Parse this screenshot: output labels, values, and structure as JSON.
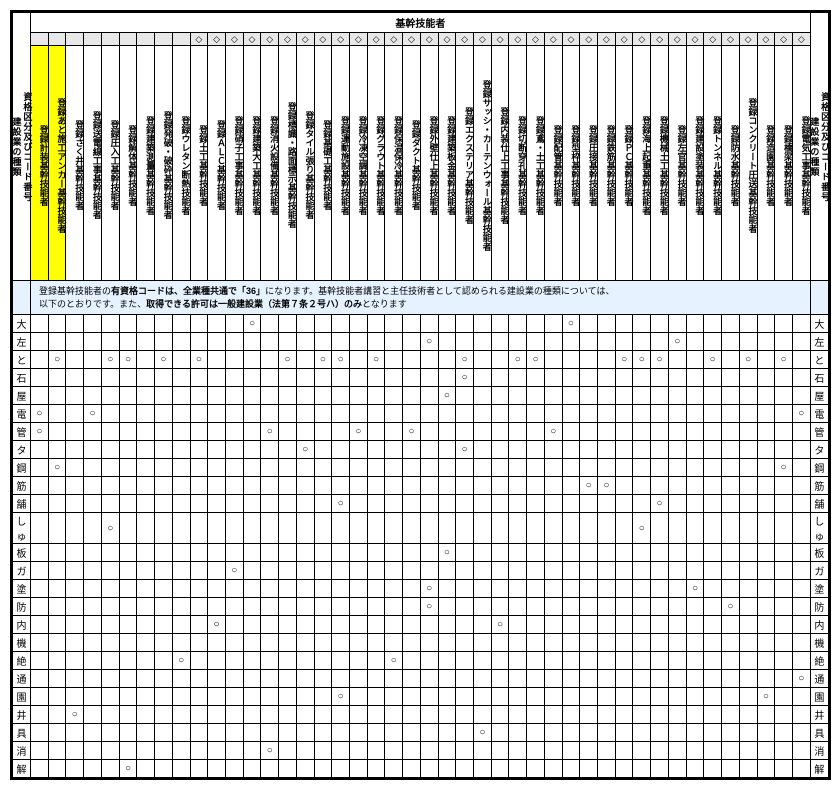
{
  "title": "基幹技能者",
  "side_left_top": "資格区分及びコード番号",
  "side_left_bottom": "建設業の種類",
  "side_right_top": "資格区分及びコード番号",
  "side_right_bottom": "建設業の種類",
  "note_line1": "登録基幹技能者の有資格コードは、全業種共通で「36」になります。基幹技能者講習と主任技術者として認められる建設業の種類については、",
  "note_line2": "以下のとおりです。また、取得できる許可は一般建設業（法第７条２号ハ）のみとなります",
  "bold1": "有資格コードは、全業種共通で「36」",
  "bold2": "取得できる許可は一般建設業（法第７条２号ハ）のみ",
  "columns": [
    {
      "label": "登録電気工事基幹技能者",
      "d": 1
    },
    {
      "label": "登録橋梁基幹技能者",
      "d": 1
    },
    {
      "label": "登録造園基幹技能者",
      "d": 1
    },
    {
      "label": "登録コンクリート圧送基幹技能者",
      "d": 1
    },
    {
      "label": "登録防水基幹技能者",
      "d": 1
    },
    {
      "label": "登録トンネル基幹技能者",
      "d": 1
    },
    {
      "label": "登録建設塗装基幹技能者",
      "d": 1
    },
    {
      "label": "登録左官基幹技能者",
      "d": 1
    },
    {
      "label": "登録機械土工基幹技能者",
      "d": 1
    },
    {
      "label": "登録海上起重基幹技能者",
      "d": 1
    },
    {
      "label": "登録ＰＣ基幹技能者",
      "d": 1
    },
    {
      "label": "登録鉄筋基幹技能者",
      "d": 1
    },
    {
      "label": "登録圧接基幹技能者",
      "d": 1
    },
    {
      "label": "登録型枠基幹技能者",
      "d": 1
    },
    {
      "label": "登録配管基幹技能者",
      "d": 1
    },
    {
      "label": "登録鳶・土工基幹技能者",
      "d": 1
    },
    {
      "label": "登録切断穿孔基幹技能者",
      "d": 1
    },
    {
      "label": "登録内装仕上工事基幹技能者",
      "d": 1
    },
    {
      "label": "登録サッシ・カーテンウォール基幹技能者",
      "d": 1
    },
    {
      "label": "登録エクステリア基幹技能者",
      "d": 1
    },
    {
      "label": "登録建築板金基幹技能者",
      "d": 1
    },
    {
      "label": "登録外壁仕上基幹技能者",
      "d": 1
    },
    {
      "label": "登録ダクト基幹技能者",
      "d": 1
    },
    {
      "label": "登録保温保冷基幹技能者",
      "d": 1
    },
    {
      "label": "登録グラウト基幹技能者",
      "d": 1
    },
    {
      "label": "登録冷凍空調基幹技能者",
      "d": 1
    },
    {
      "label": "登録運動施設基幹技能者",
      "d": 1
    },
    {
      "label": "登録基礎工基幹技能者",
      "d": 1
    },
    {
      "label": "登録タイル張り基幹技能者",
      "d": 1
    },
    {
      "label": "登録標識・路面標示基幹技能者",
      "d": 1
    },
    {
      "label": "登録消火設備基幹技能者",
      "d": 1
    },
    {
      "label": "登録建築大工基幹技能者",
      "d": 1
    },
    {
      "label": "登録硝子工事基幹技能者",
      "d": 1
    },
    {
      "label": "登録ＡＬＣ基幹技能者",
      "d": 1
    },
    {
      "label": "登録土工基幹技能者",
      "d": 1
    },
    {
      "label": "登録ウレタン断熱技能者",
      "d": 0
    },
    {
      "label": "登録発破・破砕基幹技能者",
      "d": 0
    },
    {
      "label": "登録建築測量基幹技能者",
      "d": 0
    },
    {
      "label": "登録解体基幹技能者",
      "d": 0
    },
    {
      "label": "登録圧入工基幹技能者",
      "d": 0
    },
    {
      "label": "登録送電線工事基幹技能者",
      "d": 0
    },
    {
      "label": "登録さく井基幹技能者",
      "d": 0
    },
    {
      "label": "登録あと施工アンカー基幹技能者",
      "d": 0,
      "hl": 1
    },
    {
      "label": "登録計装基幹技能者",
      "d": 0,
      "hl": 1
    }
  ],
  "rows": [
    {
      "label": "大",
      "c": [
        0,
        0,
        0,
        0,
        0,
        0,
        0,
        0,
        0,
        0,
        0,
        0,
        0,
        1,
        0,
        0,
        0,
        0,
        0,
        0,
        0,
        0,
        0,
        0,
        0,
        0,
        0,
        0,
        0,
        0,
        0,
        1,
        0,
        0,
        0,
        0,
        0,
        0,
        0,
        0,
        0,
        0,
        0,
        0
      ]
    },
    {
      "label": "左",
      "c": [
        0,
        0,
        0,
        0,
        0,
        0,
        0,
        1,
        0,
        0,
        0,
        0,
        0,
        0,
        0,
        0,
        0,
        0,
        0,
        0,
        0,
        1,
        0,
        0,
        0,
        0,
        0,
        0,
        0,
        0,
        0,
        0,
        0,
        0,
        0,
        0,
        0,
        0,
        0,
        0,
        0,
        0,
        0,
        0
      ]
    },
    {
      "label": "と",
      "c": [
        0,
        1,
        0,
        1,
        0,
        1,
        0,
        0,
        1,
        1,
        1,
        0,
        0,
        0,
        0,
        1,
        1,
        0,
        0,
        1,
        0,
        0,
        0,
        0,
        1,
        0,
        1,
        1,
        0,
        1,
        0,
        0,
        0,
        0,
        1,
        0,
        1,
        0,
        1,
        1,
        0,
        0,
        1,
        0
      ]
    },
    {
      "label": "石",
      "c": [
        0,
        0,
        0,
        0,
        0,
        0,
        0,
        0,
        0,
        0,
        0,
        0,
        0,
        0,
        0,
        0,
        0,
        0,
        0,
        1,
        0,
        0,
        0,
        0,
        0,
        0,
        0,
        0,
        0,
        0,
        0,
        0,
        0,
        0,
        0,
        0,
        0,
        0,
        0,
        0,
        0,
        0,
        0,
        0
      ]
    },
    {
      "label": "屋",
      "c": [
        0,
        0,
        0,
        0,
        0,
        0,
        0,
        0,
        0,
        0,
        0,
        0,
        0,
        0,
        0,
        0,
        0,
        0,
        0,
        0,
        1,
        0,
        0,
        0,
        0,
        0,
        0,
        0,
        0,
        0,
        0,
        0,
        0,
        0,
        0,
        0,
        0,
        0,
        0,
        0,
        0,
        0,
        0,
        0
      ]
    },
    {
      "label": "電",
      "c": [
        1,
        0,
        0,
        0,
        0,
        0,
        0,
        0,
        0,
        0,
        0,
        0,
        0,
        0,
        0,
        0,
        0,
        0,
        0,
        0,
        0,
        0,
        0,
        0,
        0,
        0,
        0,
        0,
        0,
        0,
        0,
        0,
        0,
        0,
        0,
        0,
        0,
        0,
        0,
        0,
        1,
        0,
        0,
        1
      ]
    },
    {
      "label": "管",
      "c": [
        0,
        0,
        0,
        0,
        0,
        0,
        0,
        0,
        0,
        0,
        0,
        0,
        0,
        0,
        1,
        0,
        0,
        0,
        0,
        0,
        0,
        0,
        1,
        0,
        0,
        1,
        0,
        0,
        0,
        0,
        1,
        0,
        0,
        0,
        0,
        0,
        0,
        0,
        0,
        0,
        0,
        0,
        0,
        1
      ]
    },
    {
      "label": "タ",
      "c": [
        0,
        0,
        0,
        0,
        0,
        0,
        0,
        0,
        0,
        0,
        0,
        0,
        0,
        0,
        0,
        0,
        0,
        0,
        0,
        1,
        0,
        0,
        0,
        0,
        0,
        0,
        0,
        0,
        1,
        0,
        0,
        0,
        0,
        0,
        0,
        0,
        0,
        0,
        0,
        0,
        0,
        0,
        0,
        0
      ]
    },
    {
      "label": "鋼",
      "c": [
        0,
        1,
        0,
        0,
        0,
        0,
        0,
        0,
        0,
        0,
        0,
        0,
        0,
        0,
        0,
        0,
        0,
        0,
        0,
        0,
        0,
        0,
        0,
        0,
        0,
        0,
        0,
        0,
        0,
        0,
        0,
        0,
        0,
        0,
        0,
        0,
        0,
        0,
        0,
        0,
        0,
        0,
        1,
        0
      ]
    },
    {
      "label": "筋",
      "c": [
        0,
        0,
        0,
        0,
        0,
        0,
        0,
        0,
        0,
        0,
        0,
        1,
        1,
        0,
        0,
        0,
        0,
        0,
        0,
        0,
        0,
        0,
        0,
        0,
        0,
        0,
        0,
        0,
        0,
        0,
        0,
        0,
        0,
        0,
        0,
        0,
        0,
        0,
        0,
        0,
        0,
        0,
        0,
        0
      ]
    },
    {
      "label": "舗",
      "c": [
        0,
        0,
        0,
        0,
        0,
        0,
        0,
        0,
        1,
        0,
        0,
        0,
        0,
        0,
        0,
        0,
        0,
        0,
        0,
        0,
        0,
        0,
        0,
        0,
        0,
        0,
        1,
        0,
        0,
        0,
        0,
        0,
        0,
        0,
        0,
        0,
        0,
        0,
        0,
        0,
        0,
        0,
        0,
        0
      ]
    },
    {
      "label": "しゅ",
      "c": [
        0,
        0,
        0,
        0,
        0,
        0,
        0,
        0,
        0,
        1,
        0,
        0,
        0,
        0,
        0,
        0,
        0,
        0,
        0,
        0,
        0,
        0,
        0,
        0,
        0,
        0,
        0,
        0,
        0,
        0,
        0,
        0,
        0,
        0,
        0,
        0,
        0,
        0,
        0,
        1,
        0,
        0,
        0,
        0
      ]
    },
    {
      "label": "板",
      "c": [
        0,
        0,
        0,
        0,
        0,
        0,
        0,
        0,
        0,
        0,
        0,
        0,
        0,
        0,
        0,
        0,
        0,
        0,
        0,
        0,
        1,
        0,
        0,
        0,
        0,
        0,
        0,
        0,
        0,
        0,
        0,
        0,
        0,
        0,
        0,
        0,
        0,
        0,
        0,
        0,
        0,
        0,
        0,
        0
      ]
    },
    {
      "label": "ガ",
      "c": [
        0,
        0,
        0,
        0,
        0,
        0,
        0,
        0,
        0,
        0,
        0,
        0,
        0,
        0,
        0,
        0,
        0,
        0,
        0,
        0,
        0,
        0,
        0,
        0,
        0,
        0,
        0,
        0,
        0,
        0,
        0,
        0,
        1,
        0,
        0,
        0,
        0,
        0,
        0,
        0,
        0,
        0,
        0,
        0
      ]
    },
    {
      "label": "塗",
      "c": [
        0,
        0,
        0,
        0,
        0,
        0,
        1,
        0,
        0,
        0,
        0,
        0,
        0,
        0,
        0,
        0,
        0,
        0,
        0,
        0,
        0,
        1,
        0,
        0,
        0,
        0,
        0,
        0,
        0,
        0,
        0,
        0,
        0,
        0,
        0,
        0,
        0,
        0,
        0,
        0,
        0,
        0,
        0,
        0
      ]
    },
    {
      "label": "防",
      "c": [
        0,
        0,
        0,
        0,
        1,
        0,
        0,
        0,
        0,
        0,
        0,
        0,
        0,
        0,
        0,
        0,
        0,
        0,
        0,
        0,
        0,
        1,
        0,
        0,
        0,
        0,
        0,
        0,
        0,
        0,
        0,
        0,
        0,
        0,
        0,
        0,
        0,
        0,
        0,
        0,
        0,
        0,
        0,
        0
      ]
    },
    {
      "label": "内",
      "c": [
        0,
        0,
        0,
        0,
        0,
        0,
        0,
        0,
        0,
        0,
        0,
        0,
        0,
        0,
        0,
        0,
        0,
        1,
        0,
        0,
        0,
        0,
        0,
        0,
        0,
        0,
        0,
        0,
        0,
        0,
        0,
        0,
        0,
        1,
        0,
        0,
        0,
        0,
        0,
        0,
        0,
        0,
        0,
        0
      ]
    },
    {
      "label": "機",
      "c": [
        0,
        0,
        0,
        0,
        0,
        0,
        0,
        0,
        0,
        0,
        0,
        0,
        0,
        0,
        0,
        0,
        0,
        0,
        0,
        0,
        0,
        0,
        0,
        0,
        0,
        0,
        0,
        0,
        0,
        0,
        0,
        0,
        0,
        0,
        0,
        0,
        0,
        0,
        0,
        0,
        0,
        0,
        0,
        0
      ]
    },
    {
      "label": "絶",
      "c": [
        0,
        0,
        0,
        0,
        0,
        0,
        0,
        0,
        0,
        0,
        0,
        0,
        0,
        0,
        0,
        0,
        0,
        0,
        0,
        0,
        0,
        0,
        0,
        1,
        0,
        0,
        0,
        0,
        0,
        0,
        0,
        0,
        0,
        0,
        0,
        1,
        0,
        0,
        0,
        0,
        0,
        0,
        0,
        0
      ]
    },
    {
      "label": "通",
      "c": [
        1,
        0,
        0,
        0,
        0,
        0,
        0,
        0,
        0,
        0,
        0,
        0,
        0,
        0,
        0,
        0,
        0,
        0,
        0,
        0,
        0,
        0,
        0,
        0,
        0,
        0,
        0,
        0,
        0,
        0,
        0,
        0,
        0,
        0,
        0,
        0,
        0,
        0,
        0,
        0,
        0,
        0,
        0,
        0
      ]
    },
    {
      "label": "園",
      "c": [
        0,
        0,
        1,
        0,
        0,
        0,
        0,
        0,
        0,
        0,
        0,
        0,
        0,
        0,
        0,
        0,
        0,
        0,
        0,
        0,
        0,
        0,
        0,
        0,
        0,
        0,
        1,
        0,
        0,
        0,
        0,
        0,
        0,
        0,
        0,
        0,
        0,
        0,
        0,
        0,
        0,
        0,
        0,
        0
      ]
    },
    {
      "label": "井",
      "c": [
        0,
        0,
        0,
        0,
        0,
        0,
        0,
        0,
        0,
        0,
        0,
        0,
        0,
        0,
        0,
        0,
        0,
        0,
        0,
        0,
        0,
        0,
        0,
        0,
        0,
        0,
        0,
        0,
        0,
        0,
        0,
        0,
        0,
        0,
        0,
        0,
        0,
        0,
        0,
        0,
        0,
        1,
        0,
        0
      ]
    },
    {
      "label": "具",
      "c": [
        0,
        0,
        0,
        0,
        0,
        0,
        0,
        0,
        0,
        0,
        0,
        0,
        0,
        0,
        0,
        0,
        0,
        0,
        1,
        0,
        0,
        0,
        0,
        0,
        0,
        0,
        0,
        0,
        0,
        0,
        0,
        0,
        0,
        0,
        0,
        0,
        0,
        0,
        0,
        0,
        0,
        0,
        0,
        0
      ]
    },
    {
      "label": "消",
      "c": [
        0,
        0,
        0,
        0,
        0,
        0,
        0,
        0,
        0,
        0,
        0,
        0,
        0,
        0,
        0,
        0,
        0,
        0,
        0,
        0,
        0,
        0,
        0,
        0,
        0,
        0,
        0,
        0,
        0,
        0,
        1,
        0,
        0,
        0,
        0,
        0,
        0,
        0,
        0,
        0,
        0,
        0,
        0,
        0
      ]
    },
    {
      "label": "解",
      "c": [
        0,
        0,
        0,
        0,
        0,
        0,
        0,
        0,
        0,
        0,
        0,
        0,
        0,
        0,
        0,
        0,
        0,
        0,
        0,
        0,
        0,
        0,
        0,
        0,
        0,
        0,
        0,
        0,
        0,
        0,
        0,
        0,
        0,
        0,
        0,
        0,
        0,
        0,
        1,
        0,
        0,
        0,
        0,
        0
      ]
    }
  ]
}
